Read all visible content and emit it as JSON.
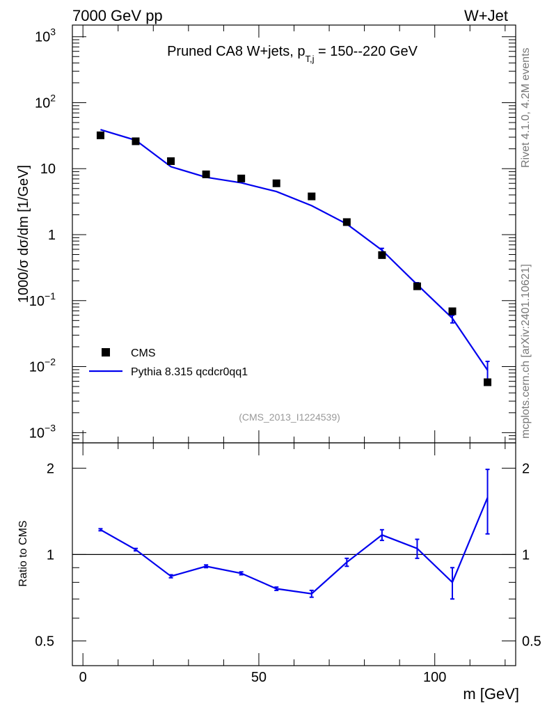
{
  "header": {
    "left": "7000 GeV pp",
    "right": "W+Jet"
  },
  "side_labels": {
    "rivet": "Rivet 4.1.0,  4.2M events",
    "site": "mcplots.cern.ch [arXiv:2401.10621]"
  },
  "chart_data": [
    {
      "type": "scatter",
      "panel": "main",
      "title_main": "Pruned CA8 W+jets, p",
      "title_sub": "T,j",
      "title_tail": " = 150--220 GeV",
      "watermark": "(CMS_2013_I1224539)",
      "ylabel": "1000/σ  dσ/dm [1/GeV]",
      "yscale": "log",
      "ylim": [
        0.0007,
        1500
      ],
      "xlim": [
        -3,
        123
      ],
      "y_ticks": [
        {
          "value": 1000,
          "base": "10",
          "exp": "3"
        },
        {
          "value": 100,
          "base": "10",
          "exp": "2"
        },
        {
          "value": 10,
          "base": "10",
          "exp": ""
        },
        {
          "value": 1,
          "base": "1",
          "exp": ""
        },
        {
          "value": 0.1,
          "base": "10",
          "exp": "−1"
        },
        {
          "value": 0.01,
          "base": "10",
          "exp": "−2"
        },
        {
          "value": 0.001,
          "base": "10",
          "exp": "−3"
        }
      ],
      "legend": [
        {
          "label": "CMS",
          "marker": "square",
          "color": "#000000"
        },
        {
          "label": "Pythia 8.315 qcdcr0qq1",
          "marker": "line",
          "color": "#0000ee"
        }
      ],
      "series": [
        {
          "name": "CMS",
          "color": "#000000",
          "x": [
            5,
            15,
            25,
            35,
            45,
            55,
            65,
            75,
            85,
            95,
            105,
            115
          ],
          "values": [
            32,
            26,
            13,
            8.2,
            7.1,
            6.0,
            3.8,
            1.55,
            0.49,
            0.165,
            0.069,
            0.0058
          ]
        },
        {
          "name": "Pythia 8.315 qcdcr0qq1",
          "color": "#0000ee",
          "x": [
            5,
            15,
            25,
            35,
            45,
            55,
            65,
            75,
            85,
            95,
            105,
            115
          ],
          "values": [
            39,
            27,
            10.7,
            7.4,
            6.1,
            4.5,
            2.75,
            1.45,
            0.58,
            0.175,
            0.054,
            0.0088
          ],
          "err_low": [
            0,
            0,
            0,
            0,
            0,
            0,
            0,
            0,
            0.04,
            0.012,
            0.008,
            0.0028
          ],
          "err_high": [
            0,
            0,
            0,
            0,
            0,
            0,
            0,
            0,
            0.04,
            0.012,
            0.006,
            0.0032
          ]
        }
      ]
    },
    {
      "type": "line",
      "panel": "ratio",
      "ylabel": "Ratio to CMS",
      "yscale": "log",
      "ylim": [
        0.41,
        2.45
      ],
      "xlim": [
        -3,
        123
      ],
      "xlabel": "m [GeV]",
      "reference": 1.0,
      "x_ticks": [
        {
          "value": 0,
          "label": "0"
        },
        {
          "value": 50,
          "label": "50"
        },
        {
          "value": 100,
          "label": "100"
        }
      ],
      "y_ticks": [
        {
          "value": 2,
          "label": "2"
        },
        {
          "value": 1,
          "label": "1"
        },
        {
          "value": 0.5,
          "label": "0.5"
        }
      ],
      "series": [
        {
          "name": "Pythia 8.315 qcdcr0qq1 / CMS",
          "color": "#0000ee",
          "x": [
            5,
            15,
            25,
            35,
            45,
            55,
            65,
            75,
            85,
            95,
            105,
            115
          ],
          "values": [
            1.22,
            1.04,
            0.84,
            0.91,
            0.86,
            0.76,
            0.73,
            0.94,
            1.17,
            1.05,
            0.8,
            1.58
          ],
          "err": [
            0.01,
            0.01,
            0.01,
            0.01,
            0.01,
            0.01,
            0.02,
            0.03,
            0.05,
            0.08,
            0.1,
            0.4
          ]
        }
      ]
    }
  ]
}
